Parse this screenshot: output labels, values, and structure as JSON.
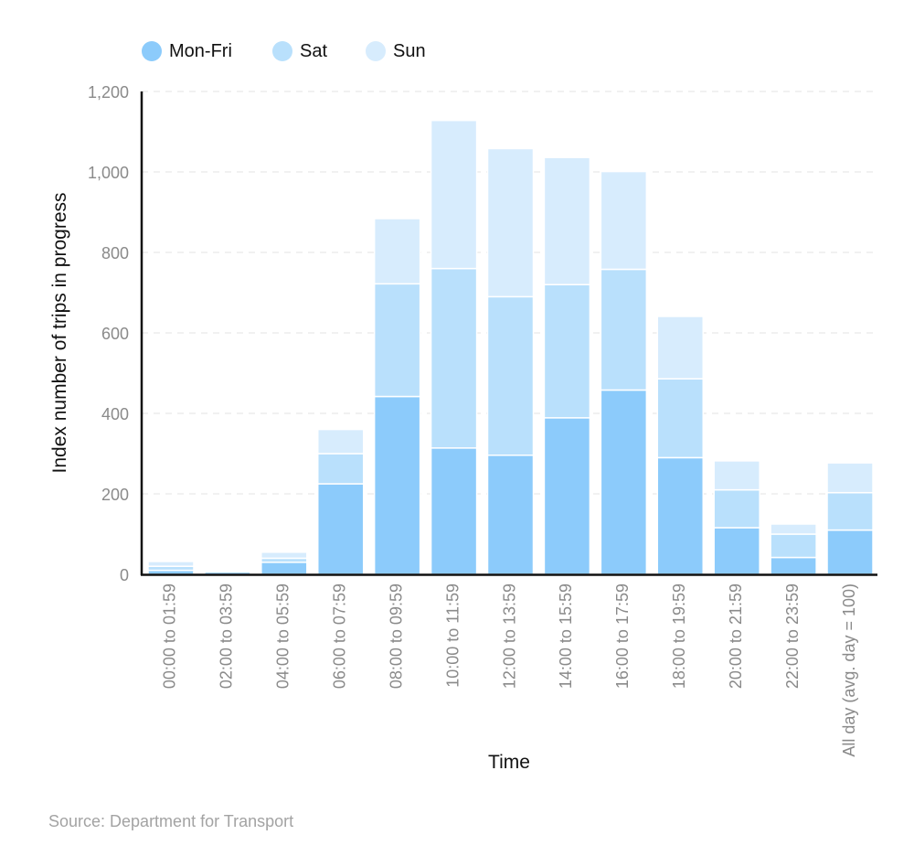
{
  "chart_data": {
    "type": "bar",
    "stacked": true,
    "categories": [
      "00:00 to 01:59",
      "02:00 to 03:59",
      "04:00 to 05:59",
      "06:00 to 07:59",
      "08:00 to 09:59",
      "10:00 to 11:59",
      "12:00 to 13:59",
      "14:00 to 15:59",
      "16:00 to 17:59",
      "18:00 to 19:59",
      "20:00 to 21:59",
      "22:00 to 23:59",
      "All day (avg. day = 100)"
    ],
    "series": [
      {
        "name": "Mon-Fri",
        "color": "#8ccbfb",
        "values": [
          10,
          6,
          30,
          225,
          442,
          314,
          296,
          389,
          458,
          290,
          116,
          42,
          110
        ]
      },
      {
        "name": "Sat",
        "color": "#b9e0fc",
        "values": [
          10,
          3,
          10,
          75,
          280,
          446,
          394,
          331,
          300,
          196,
          94,
          58,
          93
        ]
      },
      {
        "name": "Sun",
        "color": "#d7ecfd",
        "values": [
          12,
          3,
          15,
          60,
          162,
          368,
          368,
          316,
          243,
          155,
          72,
          25,
          74
        ]
      }
    ],
    "xlabel": "Time",
    "ylabel": "Index number of trips in progress",
    "ylim": [
      0,
      1200
    ],
    "yticks": [
      0,
      200,
      400,
      600,
      800,
      1000,
      1200
    ],
    "ytick_labels": [
      "0",
      "200",
      "400",
      "600",
      "800",
      "1,000",
      "1,200"
    ],
    "grid": true,
    "legend_position": "top-left"
  },
  "source": "Source: Department for Transport"
}
